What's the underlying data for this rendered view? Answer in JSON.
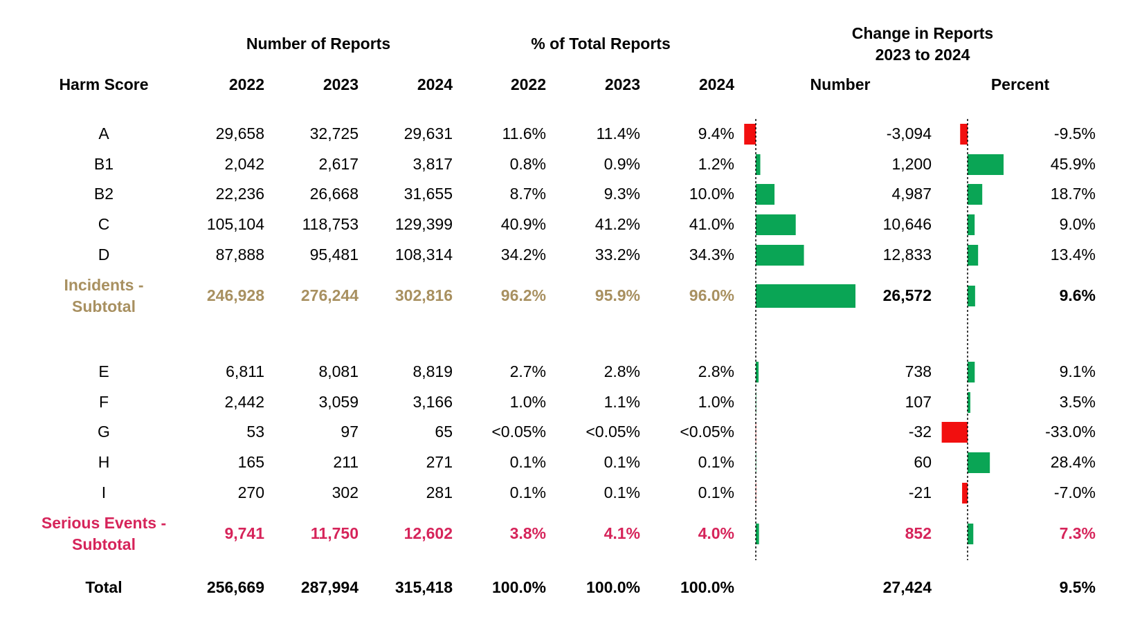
{
  "chart_data": {
    "type": "table",
    "group_headers": {
      "number_of_reports": "Number of Reports",
      "pct_of_total": "% of Total Reports",
      "change_line1": "Change in Reports",
      "change_line2": "2023 to 2024"
    },
    "column_headers": {
      "harm_score": "Harm Score",
      "n2022": "2022",
      "n2023": "2023",
      "n2024": "2024",
      "p2022": "2022",
      "p2023": "2023",
      "p2024": "2024",
      "change_number": "Number",
      "change_percent": "Percent"
    },
    "rows": [
      {
        "label": "A",
        "n2022": "29,658",
        "n2023": "32,725",
        "n2024": "29,631",
        "p2022": "11.6%",
        "p2023": "11.4%",
        "p2024": "9.4%",
        "chg_num": "-3,094",
        "chg_pct": "-9.5%",
        "chg_num_value": -3094,
        "chg_pct_value": -9.5,
        "style": "normal"
      },
      {
        "label": "B1",
        "n2022": "2,042",
        "n2023": "2,617",
        "n2024": "3,817",
        "p2022": "0.8%",
        "p2023": "0.9%",
        "p2024": "1.2%",
        "chg_num": "1,200",
        "chg_pct": "45.9%",
        "chg_num_value": 1200,
        "chg_pct_value": 45.9,
        "style": "normal"
      },
      {
        "label": "B2",
        "n2022": "22,236",
        "n2023": "26,668",
        "n2024": "31,655",
        "p2022": "8.7%",
        "p2023": "9.3%",
        "p2024": "10.0%",
        "chg_num": "4,987",
        "chg_pct": "18.7%",
        "chg_num_value": 4987,
        "chg_pct_value": 18.7,
        "style": "normal"
      },
      {
        "label": "C",
        "n2022": "105,104",
        "n2023": "118,753",
        "n2024": "129,399",
        "p2022": "40.9%",
        "p2023": "41.2%",
        "p2024": "41.0%",
        "chg_num": "10,646",
        "chg_pct": "9.0%",
        "chg_num_value": 10646,
        "chg_pct_value": 9.0,
        "style": "normal"
      },
      {
        "label": "D",
        "n2022": "87,888",
        "n2023": "95,481",
        "n2024": "108,314",
        "p2022": "34.2%",
        "p2023": "33.2%",
        "p2024": "34.3%",
        "chg_num": "12,833",
        "chg_pct": "13.4%",
        "chg_num_value": 12833,
        "chg_pct_value": 13.4,
        "style": "normal"
      },
      {
        "label": "Incidents - Subtotal",
        "label_line1": "Incidents -",
        "label_line2": "Subtotal",
        "n2022": "246,928",
        "n2023": "276,244",
        "n2024": "302,816",
        "p2022": "96.2%",
        "p2023": "95.9%",
        "p2024": "96.0%",
        "chg_num": "26,572",
        "chg_pct": "9.6%",
        "chg_num_value": 26572,
        "chg_pct_value": 9.6,
        "style": "incidents"
      },
      {
        "label": "E",
        "n2022": "6,811",
        "n2023": "8,081",
        "n2024": "8,819",
        "p2022": "2.7%",
        "p2023": "2.8%",
        "p2024": "2.8%",
        "chg_num": "738",
        "chg_pct": "9.1%",
        "chg_num_value": 738,
        "chg_pct_value": 9.1,
        "style": "normal"
      },
      {
        "label": "F",
        "n2022": "2,442",
        "n2023": "3,059",
        "n2024": "3,166",
        "p2022": "1.0%",
        "p2023": "1.1%",
        "p2024": "1.0%",
        "chg_num": "107",
        "chg_pct": "3.5%",
        "chg_num_value": 107,
        "chg_pct_value": 3.5,
        "style": "normal"
      },
      {
        "label": "G",
        "n2022": "53",
        "n2023": "97",
        "n2024": "65",
        "p2022": "<0.05%",
        "p2023": "<0.05%",
        "p2024": "<0.05%",
        "chg_num": "-32",
        "chg_pct": "-33.0%",
        "chg_num_value": -32,
        "chg_pct_value": -33.0,
        "style": "normal"
      },
      {
        "label": "H",
        "n2022": "165",
        "n2023": "211",
        "n2024": "271",
        "p2022": "0.1%",
        "p2023": "0.1%",
        "p2024": "0.1%",
        "chg_num": "60",
        "chg_pct": "28.4%",
        "chg_num_value": 60,
        "chg_pct_value": 28.4,
        "style": "normal"
      },
      {
        "label": "I",
        "n2022": "270",
        "n2023": "302",
        "n2024": "281",
        "p2022": "0.1%",
        "p2023": "0.1%",
        "p2024": "0.1%",
        "chg_num": "-21",
        "chg_pct": "-7.0%",
        "chg_num_value": -21,
        "chg_pct_value": -7.0,
        "style": "normal"
      },
      {
        "label": "Serious Events - Subtotal",
        "label_line1": "Serious Events -",
        "label_line2": "Subtotal",
        "n2022": "9,741",
        "n2023": "11,750",
        "n2024": "12,602",
        "p2022": "3.8%",
        "p2023": "4.1%",
        "p2024": "4.0%",
        "chg_num": "852",
        "chg_pct": "7.3%",
        "chg_num_value": 852,
        "chg_pct_value": 7.3,
        "style": "serious"
      },
      {
        "label": "Total",
        "n2022": "256,669",
        "n2023": "287,994",
        "n2024": "315,418",
        "p2022": "100.0%",
        "p2023": "100.0%",
        "p2024": "100.0%",
        "chg_num": "27,424",
        "chg_pct": "9.5%",
        "style": "total"
      }
    ],
    "colors": {
      "positive_bar": "#0aa555",
      "negative_bar": "#f20f0f",
      "incidents_text": "#a89060",
      "serious_text": "#d6245a"
    }
  }
}
